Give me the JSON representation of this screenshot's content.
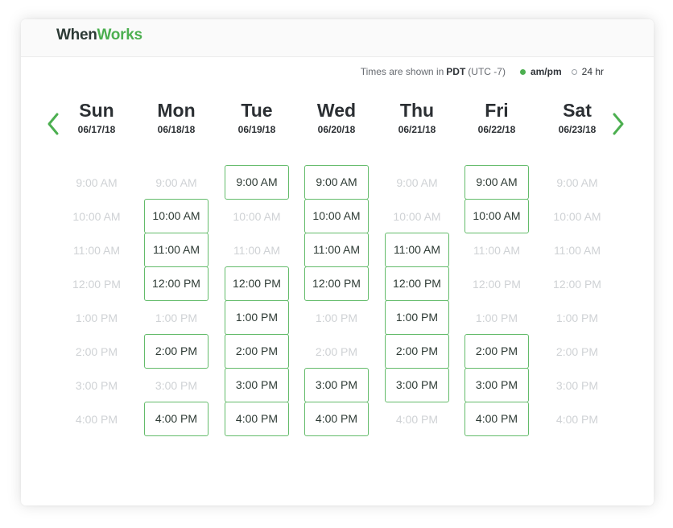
{
  "app": {
    "logo_part1": "When",
    "logo_part2": "Works"
  },
  "timezone": {
    "prefix": "Times are shown in",
    "zone": "PDT",
    "offset": "(UTC -7)"
  },
  "time_format": {
    "selected": "am/pm",
    "other": "24 hr"
  },
  "nav": {
    "prev_icon": "chevron-left-icon",
    "next_icon": "chevron-right-icon"
  },
  "colors": {
    "accent": "#4caf50",
    "slot_border": "#63bb6a",
    "disabled_text": "#cfd2d5"
  },
  "times": [
    "9:00 AM",
    "10:00 AM",
    "11:00 AM",
    "12:00 PM",
    "1:00 PM",
    "2:00 PM",
    "3:00 PM",
    "4:00 PM"
  ],
  "days": [
    {
      "name": "Sun",
      "date": "06/17/18",
      "available": [
        false,
        false,
        false,
        false,
        false,
        false,
        false,
        false
      ]
    },
    {
      "name": "Mon",
      "date": "06/18/18",
      "available": [
        false,
        true,
        true,
        true,
        false,
        true,
        false,
        true
      ]
    },
    {
      "name": "Tue",
      "date": "06/19/18",
      "available": [
        true,
        false,
        false,
        true,
        true,
        true,
        true,
        true
      ]
    },
    {
      "name": "Wed",
      "date": "06/20/18",
      "available": [
        true,
        true,
        true,
        true,
        false,
        false,
        true,
        true
      ]
    },
    {
      "name": "Thu",
      "date": "06/21/18",
      "available": [
        false,
        false,
        true,
        true,
        true,
        true,
        true,
        false
      ]
    },
    {
      "name": "Fri",
      "date": "06/22/18",
      "available": [
        true,
        true,
        false,
        false,
        false,
        true,
        true,
        true
      ]
    },
    {
      "name": "Sat",
      "date": "06/23/18",
      "available": [
        false,
        false,
        false,
        false,
        false,
        false,
        false,
        false
      ]
    }
  ]
}
